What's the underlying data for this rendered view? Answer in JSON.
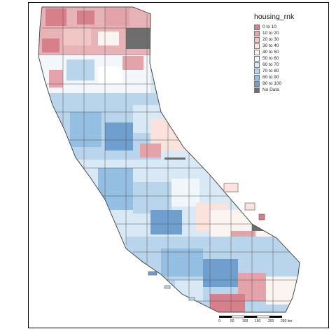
{
  "legend": {
    "title": "housing_rnk",
    "items": [
      {
        "label": "0 to 10",
        "color": "#d6808b"
      },
      {
        "label": "10 to 20",
        "color": "#e3a3a9"
      },
      {
        "label": "20 to 30",
        "color": "#f1c6c4"
      },
      {
        "label": "30 to 40",
        "color": "#fbe2dc"
      },
      {
        "label": "40 to 50",
        "color": "#fbf4f0"
      },
      {
        "label": "50 to 60",
        "color": "#f1f6fb"
      },
      {
        "label": "60 to 70",
        "color": "#d8e8f4"
      },
      {
        "label": "70 to 80",
        "color": "#b9d5ec"
      },
      {
        "label": "80 to 90",
        "color": "#94bfe2"
      },
      {
        "label": "90 to 100",
        "color": "#6f9fce"
      },
      {
        "label": "No Data",
        "color": "#6e6e6e"
      }
    ]
  },
  "scale_bar": {
    "ticks": [
      "0",
      "50",
      "100",
      "150",
      "200",
      "250 km"
    ]
  }
}
